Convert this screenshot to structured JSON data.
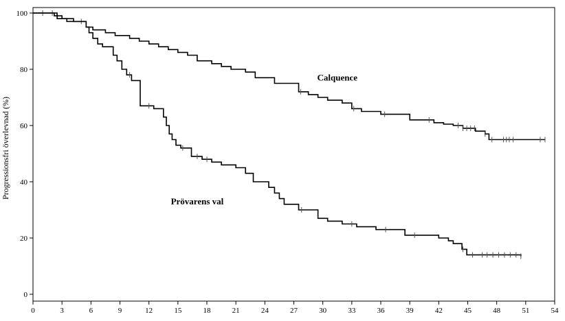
{
  "chart_data": {
    "type": "line",
    "title": "",
    "xlabel": "",
    "ylabel": "Progressionsfri överlevnad (%)",
    "xlim": [
      0,
      54
    ],
    "ylim": [
      0,
      100
    ],
    "x_ticks": [
      0,
      3,
      6,
      9,
      12,
      15,
      18,
      21,
      24,
      27,
      30,
      33,
      36,
      39,
      42,
      45,
      48,
      51,
      54
    ],
    "y_ticks": [
      0,
      20,
      40,
      60,
      80,
      100
    ],
    "grid": false,
    "series": [
      {
        "name": "Calquence",
        "step": true,
        "x": [
          0,
          2.2,
          3,
          4.2,
          5.5,
          6.2,
          7.5,
          8.5,
          10,
          11,
          12,
          13,
          14,
          15,
          16,
          17,
          18.5,
          19.5,
          20.5,
          22,
          23,
          25,
          27.5,
          28.5,
          29.5,
          30.5,
          32,
          33,
          34,
          36,
          39,
          41.5,
          42.5,
          43.5,
          44.5,
          45.8,
          46.8,
          47.2,
          53
        ],
        "y": [
          100,
          99,
          98,
          97,
          95,
          94,
          93,
          92,
          91,
          90,
          89,
          88,
          87,
          86,
          85,
          83,
          82,
          81,
          80,
          79,
          77,
          75,
          72,
          71,
          70,
          69,
          68,
          66,
          65,
          64,
          62,
          61,
          60.5,
          60,
          59,
          58,
          57,
          55,
          55
        ],
        "censored_x": [
          1,
          2,
          5,
          27.7,
          33.2,
          36.4,
          41,
          44,
          44.5,
          44.9,
          45.3,
          45.7,
          46.8,
          47.5,
          48.7,
          49,
          49.3,
          49.7,
          52.5,
          53
        ]
      },
      {
        "name": "Prövarens val",
        "step": true,
        "x": [
          0,
          2.5,
          3.5,
          5.5,
          5.8,
          6.2,
          6.7,
          7.2,
          8.3,
          8.7,
          9.2,
          9.7,
          10.2,
          11.1,
          12.5,
          13.5,
          13.8,
          14.1,
          14.4,
          14.8,
          15.3,
          16.4,
          17.5,
          18.5,
          19.5,
          21,
          22,
          22.8,
          24.4,
          25,
          25.5,
          26,
          27.5,
          29.5,
          30.5,
          32,
          33.5,
          35.5,
          38.5,
          42,
          43,
          43.5,
          44.4,
          44.9,
          50.5
        ],
        "y": [
          100,
          98,
          97,
          95,
          93,
          91,
          89,
          88,
          85,
          83,
          80,
          78,
          76,
          67,
          66,
          63,
          60,
          57,
          55,
          53,
          52,
          49,
          48,
          47,
          46,
          45,
          43,
          40,
          38,
          36,
          34,
          32,
          30,
          27,
          26,
          25,
          24,
          23,
          21,
          20,
          19,
          18,
          16,
          14,
          13.5
        ],
        "censored_x": [
          10,
          12,
          15.5,
          17,
          18,
          27.8,
          33,
          36.5,
          39.5,
          44.5,
          45.5,
          46.5,
          47,
          47.6,
          48.2,
          48.8,
          49.4,
          50,
          50.5
        ]
      }
    ],
    "annotations": [
      {
        "text": "Calquence",
        "x": 31.5,
        "y": 76
      },
      {
        "text": "Prövarens val",
        "x": 17,
        "y": 32
      }
    ]
  }
}
